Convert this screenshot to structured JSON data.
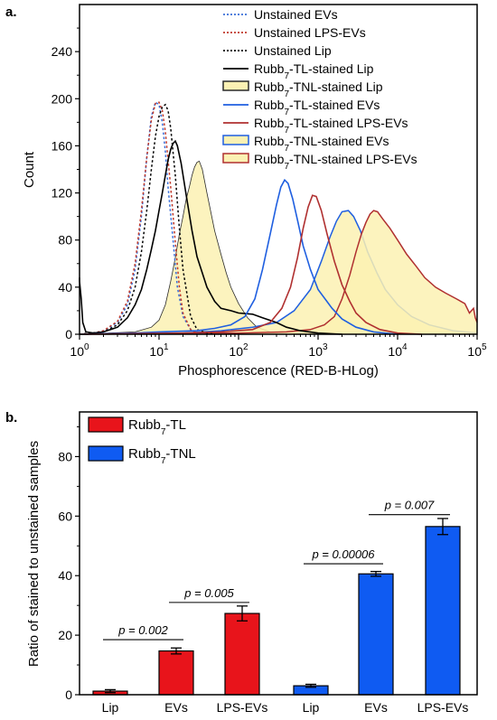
{
  "panel_a_label": "a.",
  "panel_b_label": "b.",
  "chart_data": [
    {
      "type": "line",
      "xlabel": "Phosphorescence (RED-B-HLog)",
      "ylabel": "Count",
      "xscale": "log",
      "xlim": [
        1,
        100000
      ],
      "ylim": [
        0,
        280
      ],
      "x_ticks": [
        {
          "base": "10",
          "exp": "0",
          "value": 1
        },
        {
          "base": "10",
          "exp": "1",
          "value": 10
        },
        {
          "base": "10",
          "exp": "2",
          "value": 100
        },
        {
          "base": "10",
          "exp": "3",
          "value": 1000
        },
        {
          "base": "10",
          "exp": "4",
          "value": 10000
        },
        {
          "base": "10",
          "exp": "5",
          "value": 100000
        }
      ],
      "y_ticks": [
        "0",
        "40",
        "80",
        "120",
        "160",
        "200",
        "240"
      ],
      "y_tick_values": [
        0,
        40,
        80,
        120,
        160,
        200,
        240
      ],
      "legend_position": "top-right",
      "series": [
        {
          "legend": {
            "pre": "Unstained EVs",
            "sub": "",
            "post": ""
          },
          "color": "#3a6fd8",
          "style": "dotted",
          "fill": "",
          "points": [
            [
              1,
              0
            ],
            [
              1.5,
              1
            ],
            [
              2,
              3
            ],
            [
              3,
              10
            ],
            [
              4,
              25
            ],
            [
              5,
              55
            ],
            [
              6,
              100
            ],
            [
              7,
              150
            ],
            [
              8,
              185
            ],
            [
              9,
              197
            ],
            [
              10,
              195
            ],
            [
              11,
              180
            ],
            [
              12,
              155
            ],
            [
              13,
              125
            ],
            [
              15,
              80
            ],
            [
              17,
              40
            ],
            [
              20,
              15
            ],
            [
              25,
              4
            ],
            [
              30,
              1
            ],
            [
              40,
              0
            ]
          ]
        },
        {
          "legend": {
            "pre": "Unstained LPS-EVs",
            "sub": "",
            "post": ""
          },
          "color": "#c0392b",
          "style": "dotted",
          "fill": "",
          "points": [
            [
              1,
              0
            ],
            [
              1.5,
              1
            ],
            [
              2,
              3
            ],
            [
              3,
              11
            ],
            [
              4,
              28
            ],
            [
              5,
              60
            ],
            [
              6,
              105
            ],
            [
              7,
              150
            ],
            [
              8,
              182
            ],
            [
              9,
              196
            ],
            [
              10,
              197
            ],
            [
              11,
              190
            ],
            [
              12,
              172
            ],
            [
              14,
              125
            ],
            [
              16,
              78
            ],
            [
              18,
              40
            ],
            [
              20,
              18
            ],
            [
              25,
              4
            ],
            [
              30,
              1
            ],
            [
              40,
              0
            ]
          ]
        },
        {
          "legend": {
            "pre": "Unstained Lip",
            "sub": "",
            "post": ""
          },
          "color": "#000000",
          "style": "dotted",
          "fill": "",
          "points": [
            [
              1,
              0
            ],
            [
              2,
              2
            ],
            [
              3,
              8
            ],
            [
              4,
              20
            ],
            [
              5,
              40
            ],
            [
              6,
              70
            ],
            [
              7,
              105
            ],
            [
              8,
              140
            ],
            [
              9,
              168
            ],
            [
              10,
              185
            ],
            [
              11,
              193
            ],
            [
              12,
              195
            ],
            [
              13,
              190
            ],
            [
              14,
              175
            ],
            [
              16,
              135
            ],
            [
              18,
              90
            ],
            [
              20,
              55
            ],
            [
              25,
              15
            ],
            [
              30,
              4
            ],
            [
              40,
              1
            ],
            [
              50,
              0
            ]
          ]
        },
        {
          "legend": {
            "pre": "Rubb",
            "sub": "7",
            "post": "-TL-stained Lip"
          },
          "color": "#000000",
          "style": "solid",
          "fill": "",
          "points": [
            [
              0.95,
              48
            ],
            [
              1,
              45
            ],
            [
              1.05,
              30
            ],
            [
              1.1,
              10
            ],
            [
              1.2,
              2
            ],
            [
              1.5,
              1
            ],
            [
              2,
              2
            ],
            [
              3,
              6
            ],
            [
              4,
              14
            ],
            [
              5,
              25
            ],
            [
              6,
              38
            ],
            [
              7,
              55
            ],
            [
              8,
              72
            ],
            [
              9,
              88
            ],
            [
              10,
              105
            ],
            [
              11,
              120
            ],
            [
              12,
              135
            ],
            [
              13,
              148
            ],
            [
              14,
              157
            ],
            [
              15,
              162
            ],
            [
              16,
              164
            ],
            [
              17,
              160
            ],
            [
              19,
              145
            ],
            [
              22,
              118
            ],
            [
              26,
              88
            ],
            [
              30,
              66
            ],
            [
              40,
              40
            ],
            [
              50,
              28
            ],
            [
              60,
              22
            ],
            [
              80,
              20
            ],
            [
              100,
              18
            ],
            [
              150,
              17
            ],
            [
              200,
              14
            ],
            [
              300,
              10
            ],
            [
              400,
              6
            ],
            [
              600,
              3
            ],
            [
              1000,
              1
            ],
            [
              2000,
              0
            ]
          ]
        },
        {
          "legend": {
            "pre": "Rubb",
            "sub": "7",
            "post": "-TNL-stained Lip"
          },
          "color": "#2a2a2a",
          "style": "solid",
          "fill": "#fbf1b3",
          "stroke_w": 0.8,
          "points": [
            [
              1,
              0
            ],
            [
              5,
              2
            ],
            [
              8,
              6
            ],
            [
              10,
              12
            ],
            [
              12,
              25
            ],
            [
              14,
              45
            ],
            [
              16,
              65
            ],
            [
              18,
              85
            ],
            [
              20,
              100
            ],
            [
              22,
              115
            ],
            [
              24,
              125
            ],
            [
              26,
              135
            ],
            [
              28,
              142
            ],
            [
              30,
              146
            ],
            [
              32,
              147
            ],
            [
              35,
              140
            ],
            [
              40,
              120
            ],
            [
              50,
              88
            ],
            [
              60,
              68
            ],
            [
              70,
              52
            ],
            [
              80,
              40
            ],
            [
              100,
              26
            ],
            [
              130,
              14
            ],
            [
              170,
              6
            ],
            [
              250,
              2
            ],
            [
              400,
              0
            ]
          ]
        },
        {
          "legend": {
            "pre": "Rubb",
            "sub": "7",
            "post": "-TL-stained EVs"
          },
          "color": "#1f5fe0",
          "style": "solid",
          "fill": "",
          "points": [
            [
              1,
              0
            ],
            [
              5,
              1
            ],
            [
              10,
              2
            ],
            [
              30,
              3
            ],
            [
              50,
              5
            ],
            [
              80,
              8
            ],
            [
              120,
              15
            ],
            [
              160,
              30
            ],
            [
              200,
              55
            ],
            [
              250,
              85
            ],
            [
              300,
              110
            ],
            [
              340,
              125
            ],
            [
              380,
              131
            ],
            [
              420,
              128
            ],
            [
              480,
              115
            ],
            [
              560,
              95
            ],
            [
              650,
              75
            ],
            [
              800,
              55
            ],
            [
              1000,
              38
            ],
            [
              1500,
              22
            ],
            [
              2000,
              13
            ],
            [
              3000,
              6
            ],
            [
              5000,
              2
            ],
            [
              10000,
              0
            ]
          ]
        },
        {
          "legend": {
            "pre": "Rubb",
            "sub": "7",
            "post": "-TL-stained LPS-EVs"
          },
          "color": "#b03030",
          "style": "solid",
          "fill": "",
          "points": [
            [
              1,
              0
            ],
            [
              20,
              1
            ],
            [
              60,
              2
            ],
            [
              150,
              4
            ],
            [
              250,
              10
            ],
            [
              350,
              22
            ],
            [
              450,
              40
            ],
            [
              550,
              65
            ],
            [
              650,
              90
            ],
            [
              750,
              108
            ],
            [
              850,
              118
            ],
            [
              950,
              117
            ],
            [
              1100,
              105
            ],
            [
              1300,
              85
            ],
            [
              1600,
              62
            ],
            [
              2000,
              42
            ],
            [
              2500,
              28
            ],
            [
              3000,
              18
            ],
            [
              4000,
              10
            ],
            [
              6000,
              4
            ],
            [
              10000,
              1
            ],
            [
              20000,
              0
            ]
          ]
        },
        {
          "legend": {
            "pre": "Rubb",
            "sub": "7",
            "post": "-TNL-stained EVs"
          },
          "color": "#1f5fe0",
          "style": "solid",
          "fill": "#fbf1b3",
          "stroke_w": 1.5,
          "points": [
            [
              1,
              0
            ],
            [
              20,
              1
            ],
            [
              60,
              3
            ],
            [
              150,
              6
            ],
            [
              300,
              10
            ],
            [
              500,
              20
            ],
            [
              800,
              38
            ],
            [
              1100,
              62
            ],
            [
              1400,
              82
            ],
            [
              1700,
              96
            ],
            [
              2000,
              104
            ],
            [
              2400,
              105
            ],
            [
              2800,
              100
            ],
            [
              3400,
              88
            ],
            [
              4200,
              70
            ],
            [
              5500,
              52
            ],
            [
              7000,
              38
            ],
            [
              10000,
              25
            ],
            [
              15000,
              15
            ],
            [
              25000,
              8
            ],
            [
              50000,
              3
            ],
            [
              100000,
              1
            ]
          ]
        },
        {
          "legend": {
            "pre": "Rubb",
            "sub": "7",
            "post": "-TNL-stained LPS-EVs"
          },
          "color": "#b03030",
          "style": "solid",
          "fill": "#fbf1b3",
          "stroke_w": 1.5,
          "points": [
            [
              1,
              0
            ],
            [
              100,
              1
            ],
            [
              400,
              2
            ],
            [
              800,
              4
            ],
            [
              1200,
              8
            ],
            [
              1600,
              15
            ],
            [
              2000,
              30
            ],
            [
              2500,
              50
            ],
            [
              3000,
              70
            ],
            [
              3500,
              85
            ],
            [
              4000,
              95
            ],
            [
              4500,
              102
            ],
            [
              5000,
              105
            ],
            [
              5600,
              104
            ],
            [
              6500,
              98
            ],
            [
              8000,
              90
            ],
            [
              10000,
              80
            ],
            [
              13000,
              68
            ],
            [
              17000,
              58
            ],
            [
              22000,
              48
            ],
            [
              30000,
              40
            ],
            [
              40000,
              35
            ],
            [
              55000,
              30
            ],
            [
              70000,
              26
            ],
            [
              80000,
              18
            ],
            [
              90000,
              22
            ],
            [
              95000,
              14
            ],
            [
              100000,
              10
            ]
          ]
        }
      ]
    },
    {
      "type": "bar",
      "categories": [
        "Lip",
        "EVs",
        "LPS-EVs",
        "Lip",
        "EVs",
        "LPS-EVs"
      ],
      "values": [
        1.2,
        14.7,
        27.3,
        3.0,
        40.6,
        56.5
      ],
      "errors": [
        0.5,
        1.0,
        2.5,
        0.5,
        0.8,
        2.7
      ],
      "bar_colors": [
        "#e8141b",
        "#e8141b",
        "#e8141b",
        "#0f5bf2",
        "#0f5bf2",
        "#0f5bf2"
      ],
      "series": [
        {
          "name_pre": "Rubb",
          "name_sub": "7",
          "name_post": "-TL",
          "color": "#e8141b",
          "bars": [
            0,
            1,
            2
          ]
        },
        {
          "name_pre": "Rubb",
          "name_sub": "7",
          "name_post": "-TNL",
          "color": "#0f5bf2",
          "bars": [
            3,
            4,
            5
          ]
        }
      ],
      "ylabel": "Ratio of stained to unstained samples",
      "ylim": [
        0,
        95
      ],
      "y_ticks": [
        "0",
        "20",
        "40",
        "60",
        "80"
      ],
      "y_tick_values": [
        0,
        20,
        40,
        60,
        80
      ],
      "legend_position": "top-left",
      "annotations": [
        {
          "text": "p = 0.002",
          "from": 0,
          "to": 1,
          "y": 18.5
        },
        {
          "text": "p = 0.005",
          "from": 1,
          "to": 2,
          "y": 31
        },
        {
          "text": "p = 0.00006",
          "from": 3,
          "to": 4,
          "y": 44
        },
        {
          "text": "p = 0.007",
          "from": 4,
          "to": 5,
          "y": 60.5
        }
      ]
    }
  ]
}
